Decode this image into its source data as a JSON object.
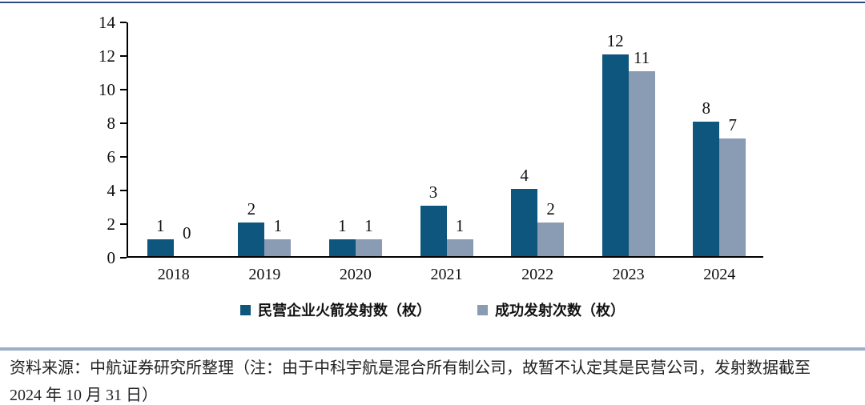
{
  "page": {
    "top_border_color": "#2B4A8C",
    "divider_color": "#9DAFC6"
  },
  "chart_data": {
    "type": "bar",
    "title": "",
    "xlabel": "",
    "ylabel": "",
    "categories": [
      "2018",
      "2019",
      "2020",
      "2021",
      "2022",
      "2023",
      "2024"
    ],
    "series": [
      {
        "name": "民营企业火箭发射数（枚）",
        "color": "#0E567E",
        "values": [
          1,
          2,
          1,
          3,
          4,
          12,
          8
        ]
      },
      {
        "name": "成功发射次数（枚）",
        "color": "#8A9BB4",
        "values": [
          0,
          1,
          1,
          1,
          2,
          11,
          7
        ]
      }
    ],
    "ylim": [
      0,
      14
    ],
    "ytick_step": 2,
    "yticks": [
      0,
      2,
      4,
      6,
      8,
      10,
      12,
      14
    ],
    "grid": false,
    "legend_position": "bottom",
    "bar_value_labels": true
  },
  "footer": {
    "line1": "资料来源：中航证券研究所整理（注：由于中科宇航是混合所有制公司，故暂不认定其是民营公司，发射数据截至",
    "line2": "2024 年 10 月 31 日）"
  }
}
